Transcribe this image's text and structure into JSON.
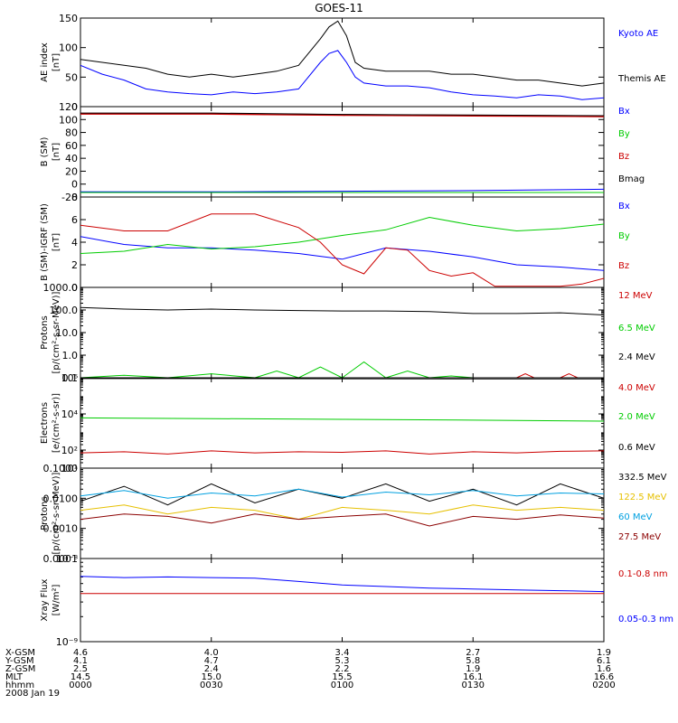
{
  "title": "GOES-11",
  "colors": {
    "black": "#000000",
    "blue": "#0000ff",
    "green": "#00cc00",
    "red": "#cc0000",
    "dark_red": "#8b0000",
    "sky": "#00a0e0",
    "yellow": "#ffd700"
  },
  "time_axis": {
    "ticks": [
      "0000",
      "0030",
      "0100",
      "0130",
      "0200"
    ],
    "minutes": [
      0,
      30,
      60,
      90,
      120
    ],
    "rows": [
      {
        "label": "X-GSM",
        "values": [
          "4.6",
          "4.0",
          "3.4",
          "2.7",
          "1.9"
        ]
      },
      {
        "label": "Y-GSM",
        "values": [
          "4.1",
          "4.7",
          "5.3",
          "5.8",
          "6.1"
        ]
      },
      {
        "label": "Z-GSM",
        "values": [
          "2.5",
          "2.4",
          "2.2",
          "1.9",
          "1.6"
        ]
      },
      {
        "label": "MLT",
        "values": [
          "14.5",
          "15.0",
          "15.5",
          "16.1",
          "16.6"
        ]
      },
      {
        "label": "hhmm",
        "values": [
          "0000",
          "0030",
          "0100",
          "0130",
          "0200"
        ]
      }
    ],
    "date": "2008 Jan 19"
  },
  "chart_data": [
    {
      "type": "line",
      "id": "ae",
      "ylabel": [
        "AE index",
        "[nT]"
      ],
      "ylim": [
        0,
        150
      ],
      "yticks": [
        0,
        50,
        100,
        150
      ],
      "scale": "linear",
      "series": [
        {
          "name": "Kyoto AE",
          "color": "#0000ff",
          "x": [
            0,
            5,
            10,
            15,
            20,
            25,
            30,
            35,
            40,
            45,
            50,
            55,
            57,
            59,
            61,
            63,
            65,
            70,
            75,
            80,
            85,
            90,
            95,
            100,
            105,
            110,
            115,
            120
          ],
          "y": [
            70,
            55,
            45,
            30,
            25,
            22,
            20,
            25,
            22,
            25,
            30,
            75,
            90,
            95,
            75,
            50,
            40,
            35,
            35,
            32,
            25,
            20,
            18,
            15,
            20,
            18,
            12,
            15
          ]
        },
        {
          "name": "Themis AE",
          "color": "#000000",
          "x": [
            0,
            5,
            10,
            15,
            20,
            25,
            30,
            35,
            40,
            45,
            50,
            55,
            57,
            59,
            61,
            63,
            65,
            70,
            75,
            80,
            85,
            90,
            95,
            100,
            105,
            110,
            115,
            120
          ],
          "y": [
            80,
            75,
            70,
            65,
            55,
            50,
            55,
            50,
            55,
            60,
            70,
            115,
            135,
            145,
            120,
            75,
            65,
            60,
            60,
            60,
            55,
            55,
            50,
            45,
            45,
            40,
            35,
            40
          ]
        }
      ]
    },
    {
      "type": "line",
      "id": "b_sm",
      "ylabel": [
        "B (SM)",
        "[nT]"
      ],
      "ylim": [
        -20,
        120
      ],
      "yticks": [
        -20,
        0,
        20,
        40,
        60,
        80,
        100,
        120
      ],
      "scale": "linear",
      "series": [
        {
          "name": "Bx",
          "color": "#0000ff",
          "x": [
            0,
            30,
            60,
            90,
            120
          ],
          "y": [
            -12,
            -12,
            -11,
            -10,
            -8
          ]
        },
        {
          "name": "By",
          "color": "#00cc00",
          "x": [
            0,
            30,
            60,
            90,
            120
          ],
          "y": [
            -13,
            -13,
            -13,
            -13,
            -13
          ]
        },
        {
          "name": "Bz",
          "color": "#cc0000",
          "x": [
            0,
            30,
            60,
            90,
            120
          ],
          "y": [
            109,
            109,
            107,
            106,
            105
          ]
        },
        {
          "name": "Bmag",
          "color": "#000000",
          "x": [
            0,
            30,
            60,
            90,
            120
          ],
          "y": [
            110,
            110,
            108,
            107,
            106
          ]
        }
      ]
    },
    {
      "type": "line",
      "id": "b_igrf",
      "ylabel": [
        "B (SM)-IGRF (SM)",
        "[nT]"
      ],
      "ylim": [
        0,
        8
      ],
      "yticks": [
        0,
        2,
        4,
        6,
        8
      ],
      "scale": "linear",
      "series": [
        {
          "name": "Bx",
          "color": "#0000ff",
          "x": [
            0,
            10,
            20,
            30,
            40,
            50,
            60,
            70,
            80,
            90,
            100,
            110,
            120
          ],
          "y": [
            4.5,
            3.8,
            3.5,
            3.5,
            3.3,
            3.0,
            2.5,
            3.5,
            3.2,
            2.7,
            2.0,
            1.8,
            1.5
          ]
        },
        {
          "name": "By",
          "color": "#00cc00",
          "x": [
            0,
            10,
            20,
            30,
            40,
            50,
            60,
            70,
            80,
            90,
            100,
            110,
            120
          ],
          "y": [
            3.0,
            3.2,
            3.8,
            3.4,
            3.6,
            4.0,
            4.6,
            5.1,
            6.2,
            5.5,
            5.0,
            5.2,
            5.6
          ]
        },
        {
          "name": "Bz",
          "color": "#cc0000",
          "x": [
            0,
            10,
            20,
            30,
            40,
            50,
            55,
            60,
            65,
            70,
            75,
            80,
            85,
            90,
            95,
            100,
            110,
            115,
            120
          ],
          "y": [
            5.5,
            5.0,
            5.0,
            6.5,
            6.5,
            5.3,
            4.0,
            2.0,
            1.2,
            3.5,
            3.3,
            1.5,
            1.0,
            1.3,
            0.1,
            0.1,
            0.1,
            0.3,
            0.8
          ]
        }
      ]
    },
    {
      "type": "line",
      "id": "protons_low",
      "ylabel": [
        "Protons",
        "[p/(cm²-s-sr-MeV)]"
      ],
      "ylim": [
        0.1,
        1000
      ],
      "yticks": [
        0.1,
        1.0,
        10.0,
        100.0,
        1000.0
      ],
      "ytick_labels": [
        "0.1",
        "1.0",
        "10.0",
        "100.0",
        "1000.0"
      ],
      "scale": "log",
      "series": [
        {
          "name": "12 MeV",
          "color": "#cc0000",
          "x": [
            0,
            100,
            102,
            104,
            110,
            112,
            114,
            120
          ],
          "y": [
            0.1,
            0.1,
            0.15,
            0.1,
            0.1,
            0.15,
            0.1,
            0.1
          ]
        },
        {
          "name": "6.5 MeV",
          "color": "#00cc00",
          "x": [
            0,
            10,
            20,
            30,
            40,
            45,
            50,
            55,
            60,
            65,
            70,
            75,
            80,
            85,
            90,
            120
          ],
          "y": [
            0.1,
            0.13,
            0.1,
            0.15,
            0.1,
            0.2,
            0.1,
            0.3,
            0.1,
            0.5,
            0.1,
            0.2,
            0.1,
            0.12,
            0.1,
            0.1
          ]
        },
        {
          "name": "2.4 MeV",
          "color": "#000000",
          "x": [
            0,
            10,
            20,
            30,
            40,
            50,
            60,
            70,
            80,
            90,
            100,
            110,
            120
          ],
          "y": [
            130,
            110,
            100,
            110,
            100,
            95,
            90,
            90,
            85,
            70,
            70,
            75,
            60
          ]
        }
      ]
    },
    {
      "type": "line",
      "id": "electrons",
      "ylabel": [
        "Electrons",
        "[e/(cm²-s-sr)]"
      ],
      "ylim": [
        10,
        1000000
      ],
      "yticks": [
        10,
        100,
        10000,
        1000000
      ],
      "ytick_labels": [
        "10¹",
        "10²",
        "10⁴",
        "10⁶"
      ],
      "scale": "log",
      "series": [
        {
          "name": "4.0 MeV",
          "color": "#cc0000",
          "x": [
            0,
            10,
            20,
            30,
            40,
            50,
            60,
            70,
            80,
            90,
            100,
            110,
            120
          ],
          "y": [
            70,
            80,
            60,
            90,
            70,
            80,
            75,
            90,
            60,
            80,
            70,
            85,
            90
          ]
        },
        {
          "name": "2.0 MeV",
          "color": "#00cc00",
          "x": [
            0,
            30,
            60,
            90,
            120
          ],
          "y": [
            6000,
            5500,
            5000,
            4500,
            4000
          ]
        },
        {
          "name": "0.6 MeV",
          "color": "#000000",
          "x": [
            0,
            30,
            60,
            90,
            120
          ],
          "y": [
            900000,
            900000,
            880000,
            870000,
            860000
          ]
        }
      ]
    },
    {
      "type": "line",
      "id": "protons_high",
      "ylabel": [
        "Protons",
        "[p/(cm²-s-sr-MeV)]"
      ],
      "ylim": [
        0.0001,
        0.1
      ],
      "yticks": [
        0.0001,
        0.001,
        0.01,
        0.1
      ],
      "ytick_labels": [
        "0.0001",
        "0.0010",
        "0.0100",
        "0.1000"
      ],
      "scale": "log",
      "series": [
        {
          "name": "332.5 MeV",
          "color": "#000000",
          "x": [
            0,
            10,
            20,
            30,
            40,
            50,
            60,
            70,
            80,
            90,
            100,
            110,
            120
          ],
          "y": [
            0.008,
            0.025,
            0.006,
            0.03,
            0.007,
            0.02,
            0.01,
            0.03,
            0.008,
            0.02,
            0.006,
            0.03,
            0.01
          ]
        },
        {
          "name": "122.5 MeV",
          "color": "#ffd700",
          "x": [
            0,
            10,
            20,
            30,
            40,
            50,
            60,
            70,
            80,
            90,
            100,
            110,
            120
          ],
          "y": [
            0.004,
            0.006,
            0.003,
            0.005,
            0.004,
            0.002,
            0.005,
            0.004,
            0.003,
            0.006,
            0.004,
            0.005,
            0.004
          ]
        },
        {
          "name": "60 MeV",
          "color": "#00a0e0",
          "x": [
            0,
            10,
            20,
            30,
            40,
            50,
            60,
            70,
            80,
            90,
            100,
            110,
            120
          ],
          "y": [
            0.012,
            0.018,
            0.01,
            0.015,
            0.012,
            0.02,
            0.011,
            0.016,
            0.013,
            0.018,
            0.012,
            0.015,
            0.014
          ]
        },
        {
          "name": "27.5 MeV",
          "color": "#8b0000",
          "x": [
            0,
            10,
            20,
            30,
            40,
            50,
            60,
            70,
            80,
            90,
            100,
            110,
            120
          ],
          "y": [
            0.002,
            0.003,
            0.0025,
            0.0015,
            0.003,
            0.002,
            0.0025,
            0.003,
            0.0012,
            0.0025,
            0.002,
            0.0028,
            0.0022
          ]
        }
      ]
    },
    {
      "type": "line",
      "id": "xray",
      "ylabel": [
        "Xray Flux",
        "[W/m²]"
      ],
      "ylim": [
        1e-09,
        1e-08
      ],
      "yticks": [
        1e-09,
        1e-08
      ],
      "ytick_labels": [
        "10⁻⁹",
        "10⁻⁸"
      ],
      "scale": "log",
      "series": [
        {
          "name": "0.1-0.8 nm",
          "color": "#cc0000",
          "x": [
            0,
            120
          ],
          "y": [
            3.8e-09,
            3.8e-09
          ]
        },
        {
          "name": "0.05-0.3 nm",
          "color": "#0000ff",
          "x": [
            0,
            10,
            20,
            30,
            40,
            50,
            60,
            70,
            80,
            90,
            100,
            110,
            120
          ],
          "y": [
            6.1e-09,
            5.9e-09,
            6e-09,
            5.9e-09,
            5.8e-09,
            5.3e-09,
            4.8e-09,
            4.6e-09,
            4.4e-09,
            4.3e-09,
            4.2e-09,
            4.1e-09,
            4e-09
          ]
        }
      ]
    }
  ]
}
